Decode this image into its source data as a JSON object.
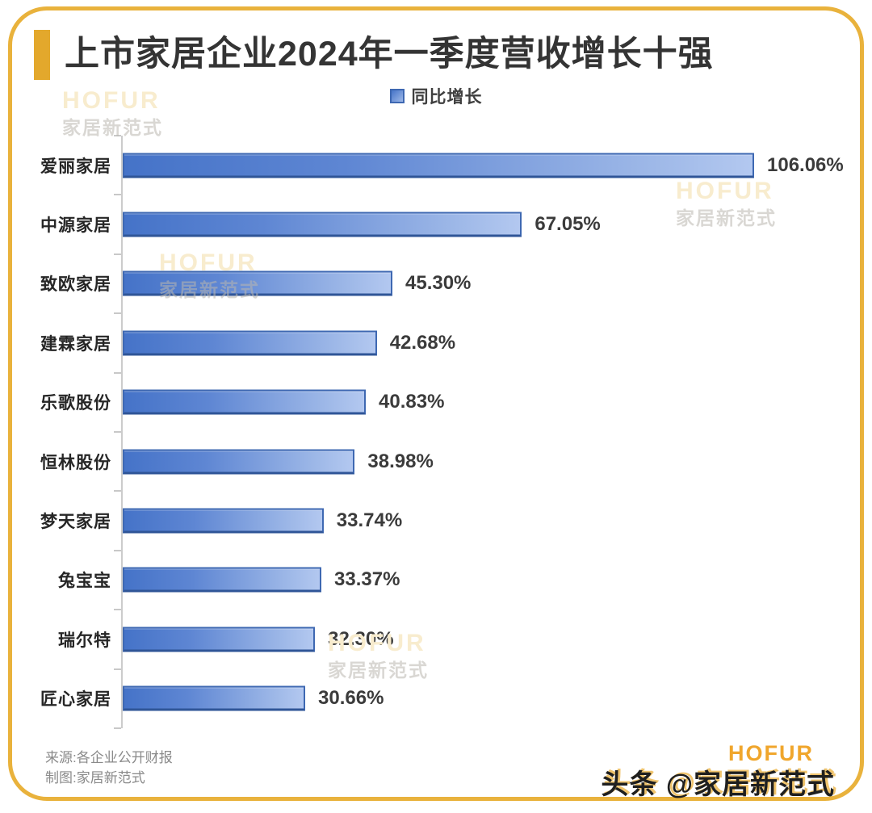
{
  "page": {
    "title": "上市家居企业2024年一季度营收增长十强"
  },
  "legend": {
    "label": "同比增长"
  },
  "chart_data": {
    "type": "bar",
    "orientation": "horizontal",
    "title": "上市家居企业2024年一季度营收增长十强",
    "series_name": "同比增长",
    "categories": [
      "爱丽家居",
      "中源家居",
      "致欧家居",
      "建霖家居",
      "乐歌股份",
      "恒林股份",
      "梦天家居",
      "兔宝宝",
      "瑞尔特",
      "匠心家居"
    ],
    "values": [
      106.06,
      67.05,
      45.3,
      42.68,
      40.83,
      38.98,
      33.74,
      33.37,
      32.3,
      30.66
    ],
    "value_labels": [
      "106.06%",
      "67.05%",
      "45.30%",
      "42.68%",
      "40.83%",
      "38.98%",
      "33.74%",
      "33.37%",
      "32.30%",
      "30.66%"
    ],
    "unit": "%",
    "xlim": [
      0,
      120
    ],
    "grid": false,
    "legend_position": "top",
    "bar_fill_start": "#4573C8",
    "bar_fill_end": "#B3C8F0",
    "bar_border": "#3E68B2"
  },
  "watermark": {
    "line1": "HOFUR",
    "line2": "家居新范式"
  },
  "footer": {
    "source_line1": "来源:各企业公开财报",
    "source_line2": "制图:家居新范式",
    "brand": "HOFUR",
    "handle": "头条 @家居新范式"
  },
  "colors": {
    "accent_gold": "#E3A82C",
    "frame_gold": "#E9B23C",
    "title_text": "#343434",
    "value_text": "#3B3B3B",
    "footer_text": "#8A8A8A",
    "brand_gold": "#F0A62C"
  }
}
